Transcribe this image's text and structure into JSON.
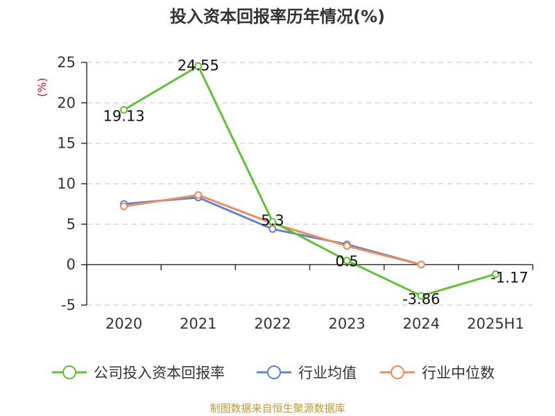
{
  "title": "投入资本回报率历年情况(%)",
  "footer": "制图数据来自恒生聚源数据库",
  "chart_data": {
    "type": "line",
    "x": [
      "2020",
      "2021",
      "2022",
      "2023",
      "2024",
      "2025H1"
    ],
    "ylabel": "(%)",
    "ylim": [
      -5,
      25
    ],
    "yticks": [
      -5,
      0,
      5,
      10,
      15,
      20,
      25
    ],
    "grid": true,
    "legend_position": "bottom",
    "series": [
      {
        "name": "公司投入资本回报率",
        "color": "#5cc430",
        "values": [
          19.13,
          24.55,
          5.3,
          0.5,
          -3.86,
          -1.17
        ],
        "labels": [
          "19.13",
          "24.55",
          "5.3",
          "0.5",
          "-3.86",
          "-1.17"
        ]
      },
      {
        "name": "行业均值",
        "color": "#5b84d6",
        "values": [
          7.5,
          8.3,
          4.4,
          2.5,
          0.0,
          null
        ]
      },
      {
        "name": "行业中位数",
        "color": "#f08c5a",
        "values": [
          7.2,
          8.6,
          5.1,
          2.3,
          0.0,
          null
        ]
      }
    ]
  }
}
